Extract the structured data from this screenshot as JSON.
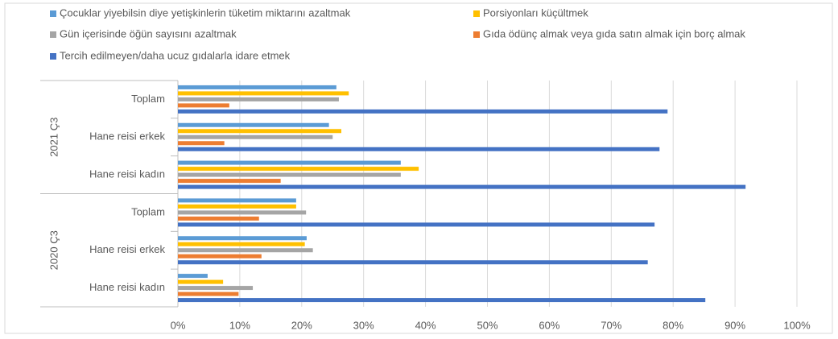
{
  "chart_data": {
    "type": "hbar",
    "groups": [
      "2021 Ç3",
      "2020 Ç3"
    ],
    "categories": [
      "Toplam",
      "Hane reisi erkek",
      "Hane reisi kadın",
      "Toplam",
      "Hane reisi erkek",
      "Hane reisi kadın"
    ],
    "series": [
      {
        "name": "Çocuklar yiyebilsin diye yetişkinlerin tüketim miktarını azaltmak",
        "color": "#5b9bd5",
        "values": [
          25.6,
          24.4,
          36.0,
          19.1,
          20.8,
          4.8
        ]
      },
      {
        "name": "Porsiyonları küçültmek",
        "color": "#ffc000",
        "values": [
          27.6,
          26.4,
          38.9,
          19.1,
          20.5,
          7.3
        ]
      },
      {
        "name": "Gün içerisinde öğün sayısını azaltmak",
        "color": "#a5a5a5",
        "values": [
          26.0,
          25.0,
          36.0,
          20.7,
          21.8,
          12.1
        ]
      },
      {
        "name": "Gıda ödünç almak veya gıda satın almak için borç almak",
        "color": "#ed7d31",
        "values": [
          8.3,
          7.5,
          16.6,
          13.1,
          13.5,
          9.8
        ]
      },
      {
        "name": "Tercih edilmeyen/daha ucuz gıdalarla idare etmek",
        "color": "#4472c4",
        "values": [
          79.1,
          77.8,
          91.7,
          77.0,
          75.9,
          85.2
        ]
      }
    ],
    "xlim": [
      0,
      100
    ],
    "xticks": [
      {
        "value": 0,
        "label": "0%"
      },
      {
        "value": 10,
        "label": "10%"
      },
      {
        "value": 20,
        "label": "20%"
      },
      {
        "value": 30,
        "label": "30%"
      },
      {
        "value": 40,
        "label": "40%"
      },
      {
        "value": 50,
        "label": "50%"
      },
      {
        "value": 60,
        "label": "60%"
      },
      {
        "value": 70,
        "label": "70%"
      },
      {
        "value": 80,
        "label": "80%"
      },
      {
        "value": 90,
        "label": "90%"
      },
      {
        "value": 100,
        "label": "100%"
      }
    ],
    "grid": true,
    "legend": "top"
  }
}
